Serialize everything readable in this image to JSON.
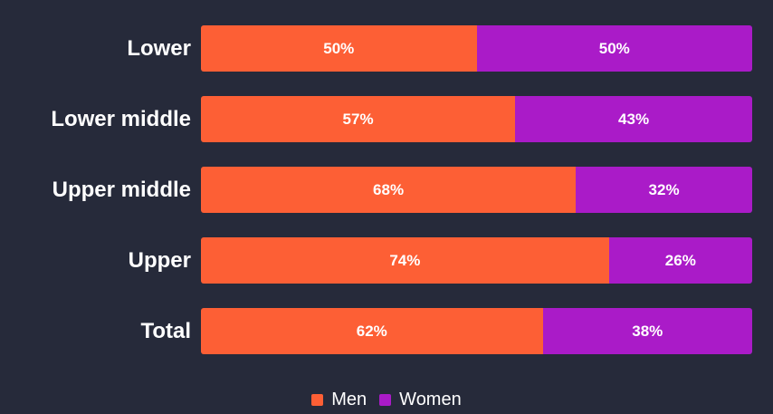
{
  "background_color": "#262A3A",
  "text_color": "#FFFFFF",
  "chart_data": {
    "type": "bar",
    "orientation": "horizontal",
    "stacked": true,
    "title": "",
    "xlabel": "",
    "ylabel": "",
    "xlim": [
      0,
      100
    ],
    "grid": false,
    "legend_position": "bottom",
    "categories": [
      "Lower",
      "Lower middle",
      "Upper middle",
      "Upper",
      "Total"
    ],
    "series": [
      {
        "name": "Men",
        "color": "#FD5F35",
        "values": [
          50,
          57,
          68,
          74,
          62
        ],
        "labels": [
          "50%",
          "57%",
          "68%",
          "74%",
          "62%"
        ]
      },
      {
        "name": "Women",
        "color": "#AA1BC8",
        "values": [
          50,
          43,
          32,
          26,
          38
        ],
        "labels": [
          "50%",
          "43%",
          "32%",
          "26%",
          "38%"
        ]
      }
    ]
  }
}
